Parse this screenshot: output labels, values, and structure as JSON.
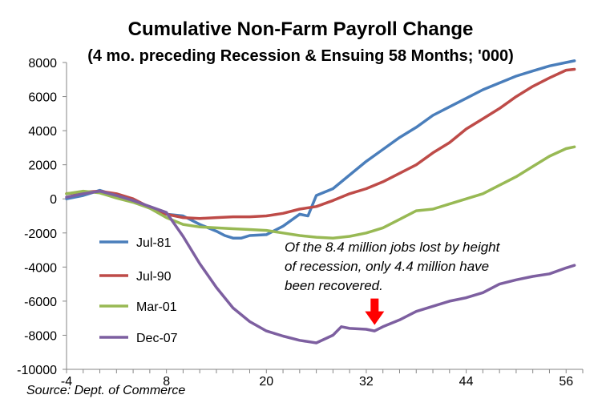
{
  "chart_data": {
    "type": "line",
    "title": "Cumulative Non-Farm Payroll Change",
    "subtitle": "(4 mo. preceding Recession & Ensuing 58 Months; '000)",
    "xlabel": "",
    "ylabel": "",
    "xlim": [
      -4,
      58
    ],
    "ylim": [
      -10000,
      8000
    ],
    "xticks": [
      -4,
      8,
      20,
      32,
      44,
      56
    ],
    "yticks": [
      -10000,
      -8000,
      -6000,
      -4000,
      -2000,
      0,
      2000,
      4000,
      6000,
      8000
    ],
    "series": [
      {
        "name": "Jul-81",
        "color": "#4a7ebb",
        "x": [
          -4,
          -2,
          0,
          2,
          4,
          6,
          8,
          10,
          12,
          14,
          15,
          16,
          17,
          18,
          20,
          22,
          24,
          25,
          26,
          28,
          30,
          32,
          34,
          36,
          38,
          40,
          42,
          44,
          46,
          48,
          50,
          52,
          54,
          56,
          57
        ],
        "values": [
          0,
          200,
          500,
          200,
          -150,
          -550,
          -900,
          -1000,
          -1500,
          -1900,
          -2150,
          -2300,
          -2300,
          -2150,
          -2100,
          -1600,
          -900,
          -1000,
          200,
          600,
          1400,
          2200,
          2900,
          3600,
          4200,
          4900,
          5400,
          5900,
          6400,
          6800,
          7200,
          7500,
          7800,
          8000,
          8100
        ]
      },
      {
        "name": "Jul-90",
        "color": "#be4b48",
        "x": [
          -4,
          -2,
          0,
          2,
          4,
          6,
          8,
          10,
          12,
          14,
          16,
          18,
          20,
          22,
          24,
          26,
          28,
          30,
          32,
          34,
          36,
          38,
          40,
          42,
          44,
          46,
          48,
          50,
          52,
          54,
          56,
          57
        ],
        "values": [
          300,
          400,
          450,
          300,
          0,
          -500,
          -900,
          -1100,
          -1150,
          -1100,
          -1050,
          -1050,
          -1000,
          -850,
          -600,
          -450,
          -100,
          300,
          600,
          1000,
          1500,
          2000,
          2700,
          3300,
          4100,
          4700,
          5300,
          6000,
          6600,
          7100,
          7550,
          7600
        ]
      },
      {
        "name": "Mar-01",
        "color": "#98b954",
        "x": [
          -4,
          -2,
          0,
          2,
          4,
          6,
          8,
          10,
          12,
          14,
          16,
          18,
          20,
          22,
          24,
          26,
          28,
          30,
          32,
          34,
          36,
          38,
          40,
          42,
          44,
          46,
          48,
          50,
          52,
          54,
          56,
          57
        ],
        "values": [
          300,
          450,
          350,
          50,
          -200,
          -550,
          -1100,
          -1500,
          -1650,
          -1700,
          -1750,
          -1800,
          -1850,
          -2000,
          -2150,
          -2250,
          -2300,
          -2200,
          -2000,
          -1700,
          -1200,
          -700,
          -600,
          -300,
          0,
          300,
          800,
          1300,
          1900,
          2500,
          2950,
          3050
        ]
      },
      {
        "name": "Dec-07",
        "color": "#7d5fa0",
        "x": [
          -4,
          -2,
          0,
          2,
          4,
          6,
          8,
          10,
          12,
          14,
          16,
          18,
          20,
          22,
          24,
          26,
          28,
          29,
          30,
          32,
          33,
          34,
          36,
          38,
          40,
          42,
          44,
          46,
          48,
          50,
          52,
          54,
          56,
          57
        ],
        "values": [
          100,
          300,
          450,
          200,
          -100,
          -450,
          -800,
          -2200,
          -3800,
          -5200,
          -6400,
          -7200,
          -7750,
          -8050,
          -8300,
          -8450,
          -8000,
          -7500,
          -7600,
          -7650,
          -7750,
          -7500,
          -7100,
          -6600,
          -6300,
          -6000,
          -5800,
          -5500,
          -5000,
          -4750,
          -4550,
          -4400,
          -4050,
          -3900
        ]
      }
    ],
    "legend": {
      "position": "left-inside",
      "labels": [
        "Jul-81",
        "Jul-90",
        "Mar-01",
        "Dec-07"
      ]
    },
    "annotation": {
      "lines": [
        "Of the 8.4 million jobs lost by height",
        "of recession, only 4.4 million have",
        "been recovered."
      ],
      "arrow_color": "#ff0000",
      "arrow_points_to_x": 33,
      "arrow_points_to_y": -7400
    },
    "source": "Source: Dept. of Commerce",
    "grid": false,
    "axis_color": "#868686"
  }
}
